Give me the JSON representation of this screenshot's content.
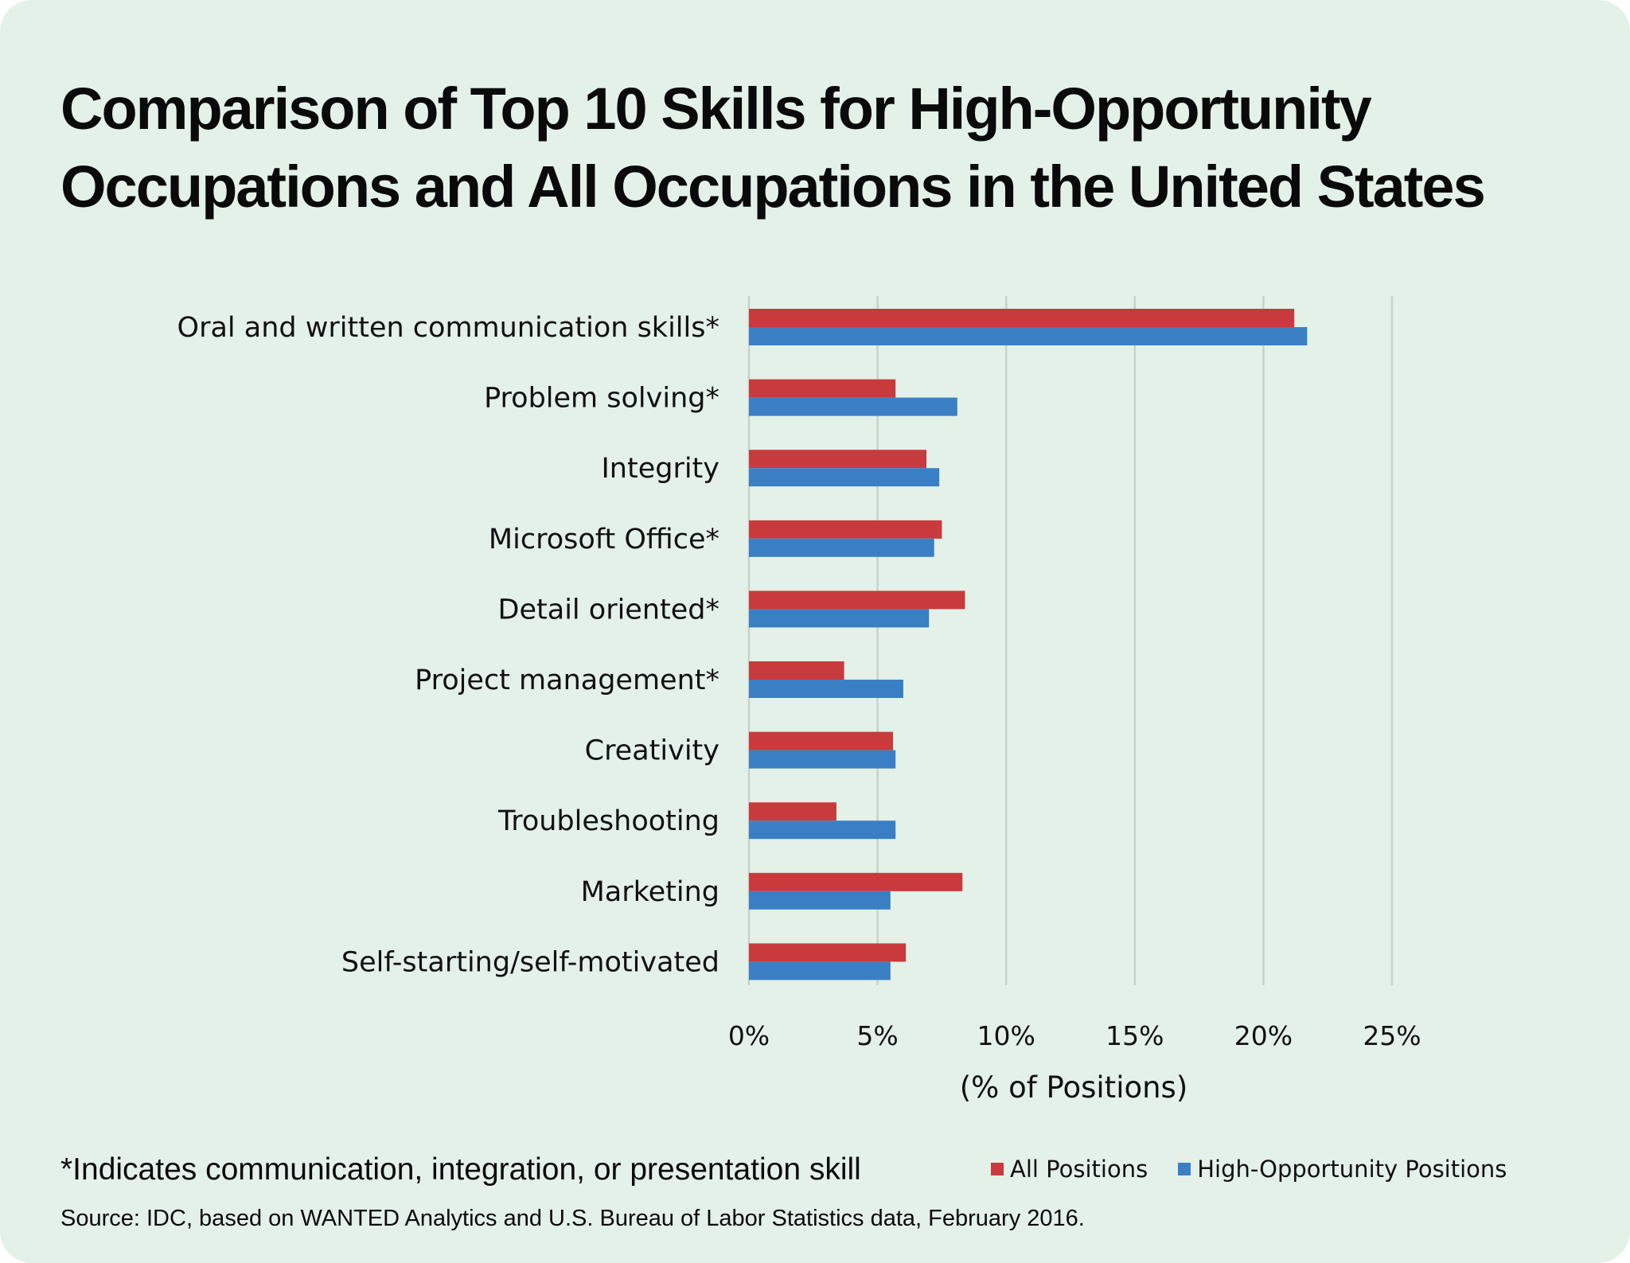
{
  "title": {
    "line1": "Comparison of Top 10 Skills for High-Opportunity",
    "line2": "Occupations and All Occupations in the United States"
  },
  "footnote": "*Indicates communication, integration, or presentation skill",
  "source": "Source: IDC, based on WANTED Analytics and U.S. Bureau of Labor Statistics data, February 2016.",
  "chart_data": {
    "type": "bar",
    "orientation": "horizontal",
    "categories": [
      "Oral and written communication skills*",
      "Problem solving*",
      "Integrity",
      "Microsoft Office*",
      "Detail oriented*",
      "Project management*",
      "Creativity",
      "Troubleshooting",
      "Marketing",
      "Self-starting/self-motivated"
    ],
    "series": [
      {
        "name": "All Positions",
        "color": "#c93a3c",
        "values": [
          21.2,
          5.7,
          6.9,
          7.5,
          8.4,
          3.7,
          5.6,
          3.4,
          8.3,
          6.1
        ]
      },
      {
        "name": "High-Opportunity Positions",
        "color": "#3a7fc4",
        "values": [
          21.7,
          8.1,
          7.4,
          7.2,
          7.0,
          6.0,
          5.7,
          5.7,
          5.5,
          5.5
        ]
      }
    ],
    "xlabel": "(% of Positions)",
    "xlim": [
      0,
      25
    ],
    "xticks": [
      0,
      5,
      10,
      15,
      20,
      25
    ],
    "xtick_labels": [
      "0%",
      "5%",
      "10%",
      "15%",
      "20%",
      "25%"
    ],
    "grid": true,
    "legend_position": "bottom-right"
  }
}
